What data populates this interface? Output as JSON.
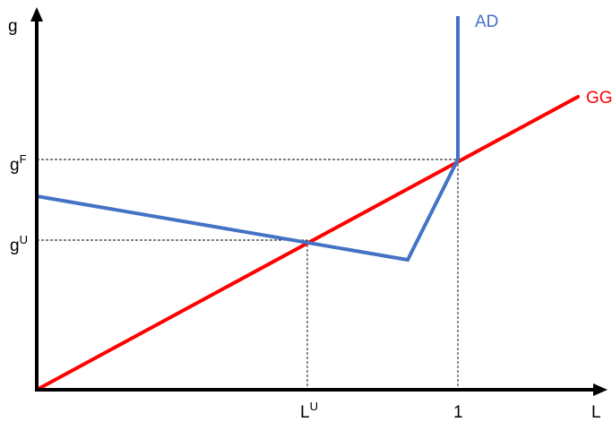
{
  "axes": {
    "y_label": "g",
    "x_label": "L"
  },
  "y_ticks": [
    {
      "base": "g",
      "sup": "F"
    },
    {
      "base": "g",
      "sup": "U"
    }
  ],
  "x_ticks": [
    {
      "base": "L",
      "sup": "U"
    },
    {
      "base": "1",
      "sup": ""
    }
  ],
  "curves": [
    {
      "name": "AD",
      "color": "#4472C4"
    },
    {
      "name": "GG",
      "color": "#FF0000"
    }
  ],
  "colors": {
    "axis": "#000000",
    "guide": "#000000"
  }
}
